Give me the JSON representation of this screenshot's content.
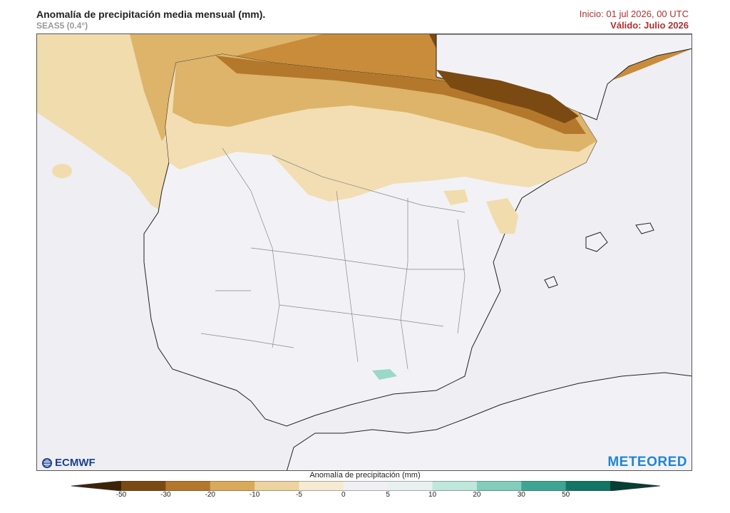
{
  "header": {
    "title": "Anomalía de precipitación media mensual (mm).",
    "subtitle": "SEAS5 (0.4°)",
    "init": "Inicio: 01 jul 2026, 00 UTC",
    "valid": "Válido: Julio 2026"
  },
  "logos": {
    "left": "ECMWF",
    "right": "METEORED"
  },
  "colorbar": {
    "label": "Anomalía de precipitación (mm)",
    "ticks": [
      "-50",
      "-30",
      "-20",
      "-10",
      "-5",
      "0",
      "5",
      "10",
      "20",
      "30",
      "50"
    ],
    "colors": [
      "#3d2305",
      "#7a4a12",
      "#b3782c",
      "#d9aa5a",
      "#ecd3a0",
      "#f6ebd2",
      "#f0f0f4",
      "#e9f0f0",
      "#bfe7dc",
      "#82cdbc",
      "#3fa593",
      "#137565",
      "#063f34"
    ],
    "land_color": "#f2f2f6",
    "sea_color": "#eeeef3"
  }
}
